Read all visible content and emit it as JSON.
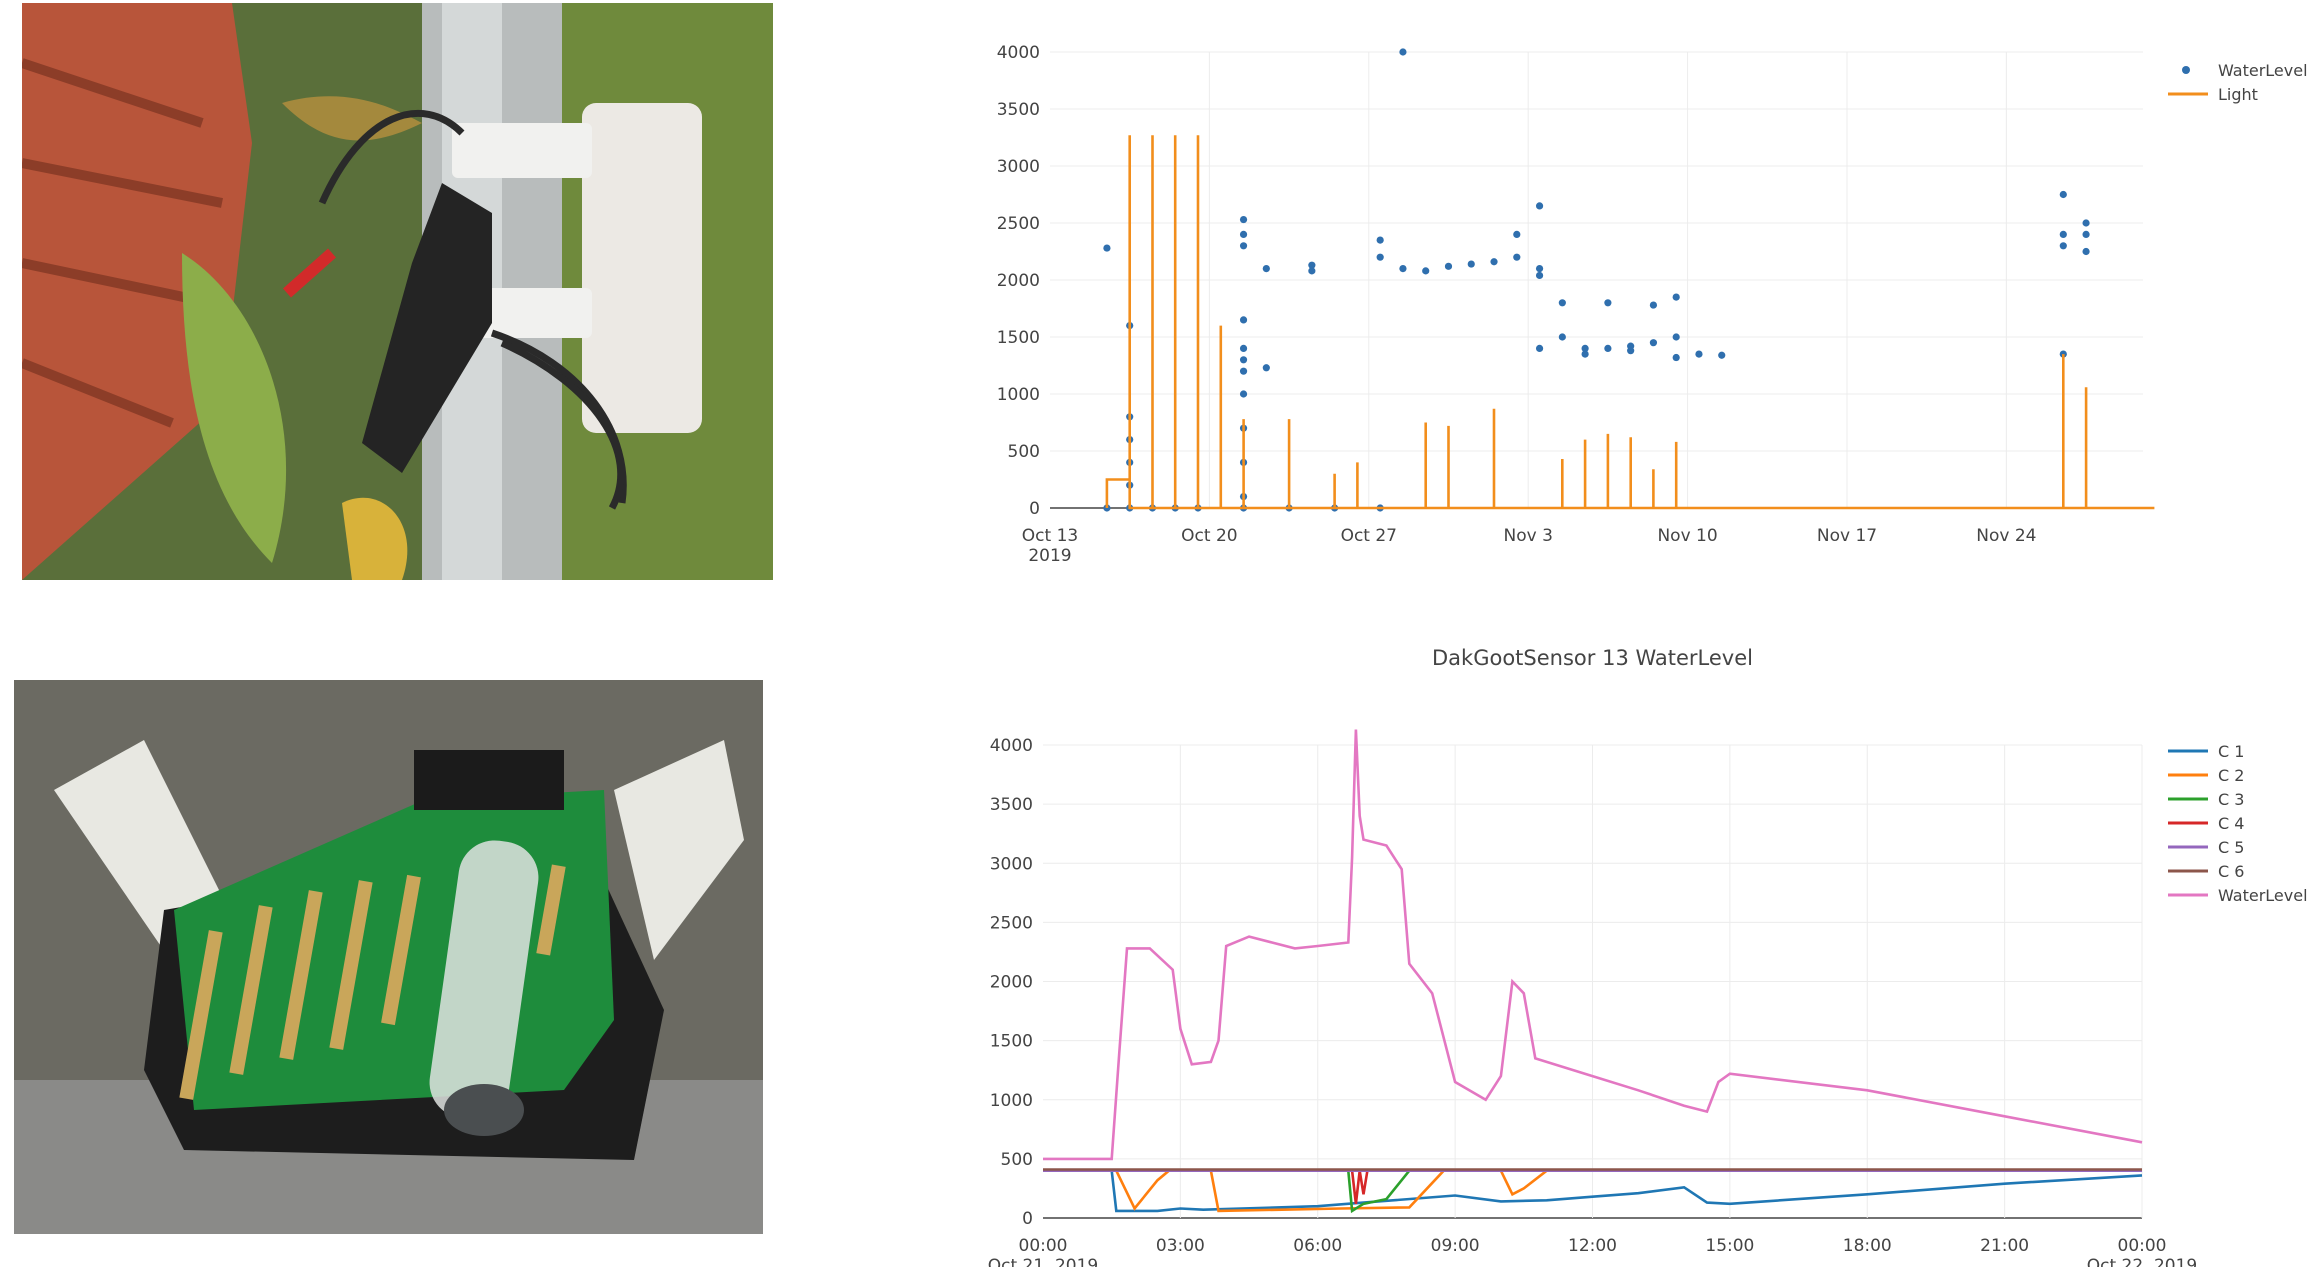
{
  "chart_data": [
    {
      "type": "scatter+line",
      "title": "",
      "xlabel": "",
      "ylabel": "",
      "ylim": [
        0,
        4000
      ],
      "y_ticks": [
        0,
        500,
        1000,
        1500,
        2000,
        2500,
        3000,
        3500,
        4000
      ],
      "x_ticks": [
        "Oct 13\n2019",
        "Oct 20",
        "Oct 27",
        "Nov 3",
        "Nov 10",
        "Nov 17",
        "Nov 24"
      ],
      "x_range": [
        "2019-10-13",
        "2019-11-30"
      ],
      "grid": true,
      "legend_position": "top-right",
      "series": [
        {
          "name": "WaterLevel",
          "mode": "markers",
          "color": "#2f6fae",
          "points": [
            [
              "2019-10-15",
              2280
            ],
            [
              "2019-10-15",
              0
            ],
            [
              "2019-10-16",
              1600
            ],
            [
              "2019-10-16",
              800
            ],
            [
              "2019-10-16",
              600
            ],
            [
              "2019-10-16",
              400
            ],
            [
              "2019-10-16",
              200
            ],
            [
              "2019-10-16",
              0
            ],
            [
              "2019-10-17",
              0
            ],
            [
              "2019-10-18",
              0
            ],
            [
              "2019-10-19",
              0
            ],
            [
              "2019-10-21",
              2530
            ],
            [
              "2019-10-21",
              2400
            ],
            [
              "2019-10-21",
              2300
            ],
            [
              "2019-10-21",
              1650
            ],
            [
              "2019-10-21",
              1400
            ],
            [
              "2019-10-21",
              1300
            ],
            [
              "2019-10-21",
              1200
            ],
            [
              "2019-10-21",
              1000
            ],
            [
              "2019-10-21",
              700
            ],
            [
              "2019-10-21",
              400
            ],
            [
              "2019-10-21",
              100
            ],
            [
              "2019-10-21",
              0
            ],
            [
              "2019-10-22",
              1230
            ],
            [
              "2019-10-22",
              2100
            ],
            [
              "2019-10-23",
              0
            ],
            [
              "2019-10-24",
              2130
            ],
            [
              "2019-10-24",
              2080
            ],
            [
              "2019-10-25",
              0
            ],
            [
              "2019-10-27",
              2350
            ],
            [
              "2019-10-27",
              2200
            ],
            [
              "2019-10-27",
              0
            ],
            [
              "2019-10-28",
              4000
            ],
            [
              "2019-10-28",
              2100
            ],
            [
              "2019-10-29",
              2080
            ],
            [
              "2019-10-30",
              2120
            ],
            [
              "2019-10-31",
              2140
            ],
            [
              "2019-11-01",
              2160
            ],
            [
              "2019-11-02",
              2200
            ],
            [
              "2019-11-02",
              2400
            ],
            [
              "2019-11-03",
              2650
            ],
            [
              "2019-11-03",
              2100
            ],
            [
              "2019-11-03",
              2040
            ],
            [
              "2019-11-03",
              1400
            ],
            [
              "2019-11-04",
              1500
            ],
            [
              "2019-11-04",
              1800
            ],
            [
              "2019-11-05",
              1350
            ],
            [
              "2019-11-05",
              1400
            ],
            [
              "2019-11-06",
              1400
            ],
            [
              "2019-11-06",
              1800
            ],
            [
              "2019-11-07",
              1380
            ],
            [
              "2019-11-07",
              1420
            ],
            [
              "2019-11-08",
              1450
            ],
            [
              "2019-11-08",
              1780
            ],
            [
              "2019-11-09",
              1500
            ],
            [
              "2019-11-09",
              1850
            ],
            [
              "2019-11-09",
              1320
            ],
            [
              "2019-11-10",
              1350
            ],
            [
              "2019-11-11",
              1340
            ],
            [
              "2019-11-26",
              1350
            ],
            [
              "2019-11-26",
              2300
            ],
            [
              "2019-11-26",
              2750
            ],
            [
              "2019-11-26",
              2400
            ],
            [
              "2019-11-27",
              2500
            ],
            [
              "2019-11-27",
              2250
            ],
            [
              "2019-11-27",
              2400
            ]
          ]
        },
        {
          "name": "Light",
          "mode": "lines",
          "color": "#f28e1c",
          "points": [
            [
              "2019-10-15",
              0
            ],
            [
              "2019-10-15",
              250
            ],
            [
              "2019-10-16",
              250
            ],
            [
              "2019-10-16",
              3270
            ],
            [
              "2019-10-16",
              0
            ],
            [
              "2019-10-17",
              0
            ],
            [
              "2019-10-17",
              3270
            ],
            [
              "2019-10-17",
              0
            ],
            [
              "2019-10-18",
              0
            ],
            [
              "2019-10-18",
              3270
            ],
            [
              "2019-10-18",
              0
            ],
            [
              "2019-10-19",
              0
            ],
            [
              "2019-10-19",
              3270
            ],
            [
              "2019-10-19",
              0
            ],
            [
              "2019-10-20",
              0
            ],
            [
              "2019-10-20",
              1600
            ],
            [
              "2019-10-20",
              0
            ],
            [
              "2019-10-21",
              0
            ],
            [
              "2019-10-21",
              780
            ],
            [
              "2019-10-21",
              0
            ],
            [
              "2019-10-23",
              0
            ],
            [
              "2019-10-23",
              780
            ],
            [
              "2019-10-23",
              0
            ],
            [
              "2019-10-25",
              0
            ],
            [
              "2019-10-25",
              300
            ],
            [
              "2019-10-25",
              0
            ],
            [
              "2019-10-26",
              0
            ],
            [
              "2019-10-26",
              400
            ],
            [
              "2019-10-26",
              0
            ],
            [
              "2019-10-29",
              0
            ],
            [
              "2019-10-29",
              750
            ],
            [
              "2019-10-29",
              0
            ],
            [
              "2019-10-30",
              0
            ],
            [
              "2019-10-30",
              720
            ],
            [
              "2019-10-30",
              0
            ],
            [
              "2019-11-01",
              0
            ],
            [
              "2019-11-01",
              870
            ],
            [
              "2019-11-01",
              0
            ],
            [
              "2019-11-04",
              0
            ],
            [
              "2019-11-04",
              430
            ],
            [
              "2019-11-04",
              0
            ],
            [
              "2019-11-05",
              0
            ],
            [
              "2019-11-05",
              600
            ],
            [
              "2019-11-05",
              0
            ],
            [
              "2019-11-06",
              0
            ],
            [
              "2019-11-06",
              650
            ],
            [
              "2019-11-06",
              0
            ],
            [
              "2019-11-07",
              0
            ],
            [
              "2019-11-07",
              620
            ],
            [
              "2019-11-07",
              0
            ],
            [
              "2019-11-08",
              0
            ],
            [
              "2019-11-08",
              340
            ],
            [
              "2019-11-08",
              0
            ],
            [
              "2019-11-09",
              0
            ],
            [
              "2019-11-09",
              580
            ],
            [
              "2019-11-09",
              0
            ],
            [
              "2019-11-25",
              0
            ],
            [
              "2019-11-26",
              0
            ],
            [
              "2019-11-26",
              1350
            ],
            [
              "2019-11-26",
              0
            ],
            [
              "2019-11-27",
              0
            ],
            [
              "2019-11-27",
              1060
            ],
            [
              "2019-11-27",
              0
            ],
            [
              "2019-11-30",
              0
            ]
          ]
        }
      ]
    },
    {
      "type": "line",
      "title": "DakGootSensor 13 WaterLevel",
      "xlabel": "",
      "ylabel": "",
      "ylim": [
        0,
        4000
      ],
      "y_ticks": [
        0,
        500,
        1000,
        1500,
        2000,
        2500,
        3000,
        3500,
        4000
      ],
      "x_ticks": [
        "00:00\nOct 21, 2019",
        "03:00",
        "06:00",
        "09:00",
        "12:00",
        "15:00",
        "18:00",
        "21:00",
        "00:00\nOct 22, 2019"
      ],
      "x_range": [
        "2019-10-21 00:00",
        "2019-10-22 00:00"
      ],
      "grid": true,
      "legend_position": "top-right",
      "series": [
        {
          "name": "C 1",
          "color": "#1f77b4",
          "points": [
            [
              "2019-10-21 00:00",
              400
            ],
            [
              "2019-10-21 01:30",
              400
            ],
            [
              "2019-10-21 01:36",
              60
            ],
            [
              "2019-10-21 02:30",
              60
            ],
            [
              "2019-10-21 03:00",
              80
            ],
            [
              "2019-10-21 03:30",
              70
            ],
            [
              "2019-10-21 06:00",
              100
            ],
            [
              "2019-10-21 07:00",
              130
            ],
            [
              "2019-10-21 09:00",
              190
            ],
            [
              "2019-10-21 10:00",
              140
            ],
            [
              "2019-10-21 11:00",
              150
            ],
            [
              "2019-10-21 12:00",
              180
            ],
            [
              "2019-10-21 13:00",
              210
            ],
            [
              "2019-10-21 14:00",
              260
            ],
            [
              "2019-10-21 14:30",
              130
            ],
            [
              "2019-10-21 15:00",
              120
            ],
            [
              "2019-10-21 18:00",
              200
            ],
            [
              "2019-10-21 21:00",
              290
            ],
            [
              "2019-10-22 00:00",
              360
            ]
          ]
        },
        {
          "name": "C 2",
          "color": "#ff7f0e",
          "points": [
            [
              "2019-10-21 00:00",
              400
            ],
            [
              "2019-10-21 01:36",
              400
            ],
            [
              "2019-10-21 02:00",
              80
            ],
            [
              "2019-10-21 02:30",
              320
            ],
            [
              "2019-10-21 02:45",
              400
            ],
            [
              "2019-10-21 03:40",
              400
            ],
            [
              "2019-10-21 03:50",
              60
            ],
            [
              "2019-10-21 06:30",
              80
            ],
            [
              "2019-10-21 08:00",
              90
            ],
            [
              "2019-10-21 08:45",
              400
            ],
            [
              "2019-10-21 10:00",
              400
            ],
            [
              "2019-10-21 10:15",
              200
            ],
            [
              "2019-10-21 10:30",
              250
            ],
            [
              "2019-10-21 11:00",
              400
            ],
            [
              "2019-10-22 00:00",
              400
            ]
          ]
        },
        {
          "name": "C 3",
          "color": "#2ca02c",
          "points": [
            [
              "2019-10-21 06:40",
              400
            ],
            [
              "2019-10-21 06:45",
              60
            ],
            [
              "2019-10-21 07:00",
              120
            ],
            [
              "2019-10-21 07:30",
              160
            ],
            [
              "2019-10-21 08:00",
              400
            ]
          ]
        },
        {
          "name": "C 4",
          "color": "#d62728",
          "points": [
            [
              "2019-10-21 06:45",
              400
            ],
            [
              "2019-10-21 06:50",
              120
            ],
            [
              "2019-10-21 06:55",
              400
            ],
            [
              "2019-10-21 07:00",
              200
            ],
            [
              "2019-10-21 07:05",
              400
            ]
          ]
        },
        {
          "name": "C 5",
          "color": "#9467bd",
          "points": [
            [
              "2019-10-21 00:00",
              400
            ],
            [
              "2019-10-22 00:00",
              400
            ]
          ]
        },
        {
          "name": "C 6",
          "color": "#8c564b",
          "points": [
            [
              "2019-10-21 00:00",
              410
            ],
            [
              "2019-10-22 00:00",
              410
            ]
          ]
        },
        {
          "name": "WaterLevel",
          "color": "#e377c2",
          "points": [
            [
              "2019-10-21 00:00",
              500
            ],
            [
              "2019-10-21 01:30",
              500
            ],
            [
              "2019-10-21 01:40",
              1400
            ],
            [
              "2019-10-21 01:50",
              2280
            ],
            [
              "2019-10-21 02:20",
              2280
            ],
            [
              "2019-10-21 02:50",
              2100
            ],
            [
              "2019-10-21 03:00",
              1600
            ],
            [
              "2019-10-21 03:15",
              1300
            ],
            [
              "2019-10-21 03:40",
              1320
            ],
            [
              "2019-10-21 03:50",
              1500
            ],
            [
              "2019-10-21 04:00",
              2300
            ],
            [
              "2019-10-21 04:30",
              2380
            ],
            [
              "2019-10-21 05:00",
              2330
            ],
            [
              "2019-10-21 05:30",
              2280
            ],
            [
              "2019-10-21 06:00",
              2300
            ],
            [
              "2019-10-21 06:40",
              2330
            ],
            [
              "2019-10-21 06:45",
              3050
            ],
            [
              "2019-10-21 06:50",
              4130
            ],
            [
              "2019-10-21 06:55",
              3400
            ],
            [
              "2019-10-21 07:00",
              3200
            ],
            [
              "2019-10-21 07:30",
              3150
            ],
            [
              "2019-10-21 07:50",
              2950
            ],
            [
              "2019-10-21 08:00",
              2150
            ],
            [
              "2019-10-21 08:30",
              1900
            ],
            [
              "2019-10-21 09:00",
              1150
            ],
            [
              "2019-10-21 09:40",
              1000
            ],
            [
              "2019-10-21 10:00",
              1200
            ],
            [
              "2019-10-21 10:15",
              2000
            ],
            [
              "2019-10-21 10:30",
              1900
            ],
            [
              "2019-10-21 10:45",
              1350
            ],
            [
              "2019-10-21 12:00",
              1200
            ],
            [
              "2019-10-21 13:00",
              1080
            ],
            [
              "2019-10-21 14:00",
              950
            ],
            [
              "2019-10-21 14:30",
              900
            ],
            [
              "2019-10-21 14:45",
              1150
            ],
            [
              "2019-10-21 15:00",
              1220
            ],
            [
              "2019-10-21 18:00",
              1080
            ],
            [
              "2019-10-21 21:00",
              860
            ],
            [
              "2019-10-22 00:00",
              640
            ]
          ]
        }
      ]
    }
  ]
}
